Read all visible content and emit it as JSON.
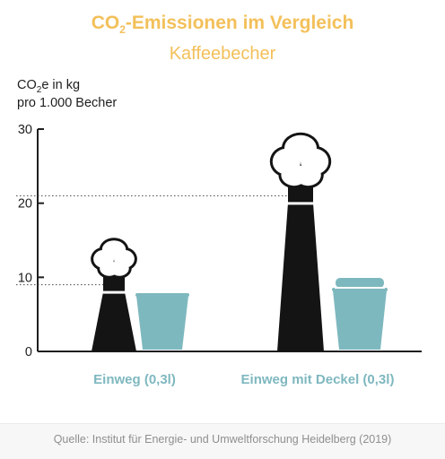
{
  "header": {
    "title_main": "CO",
    "title_sub": "2",
    "title_rest": "-Emissionen im Vergleich",
    "subtitle": "Kaffeebecher"
  },
  "axis_label": {
    "line1_main": "CO",
    "line1_sub": "2",
    "line1_rest": "e in kg",
    "line2": "pro 1.000 Becher"
  },
  "source": "Quelle: Institut für Energie- und Umweltforschung Heidelberg (2019)",
  "colors": {
    "title": "#f3c05a",
    "chimney": "#141414",
    "cup": "#7eb8bf",
    "category_label": "#7eb8bf",
    "axis": "#1e1e1e"
  },
  "chart_data": {
    "type": "bar",
    "categories": [
      "Einweg (0,3l)",
      "Einweg mit Deckel (0,3l)"
    ],
    "values": [
      9,
      21
    ],
    "ylim": [
      0,
      30
    ],
    "yticks": [
      "0",
      "10",
      "20",
      "30"
    ],
    "ylabel": "CO2e in kg pro 1.000 Becher",
    "title": "CO2-Emissionen im Vergleich",
    "subtitle": "Kaffeebecher",
    "grid": false,
    "reference_lines": "dotted lines at each category value",
    "icons": [
      "smokestack-icon",
      "coffee-cup-icon",
      "smokestack-icon",
      "coffee-cup-with-lid-icon"
    ]
  }
}
